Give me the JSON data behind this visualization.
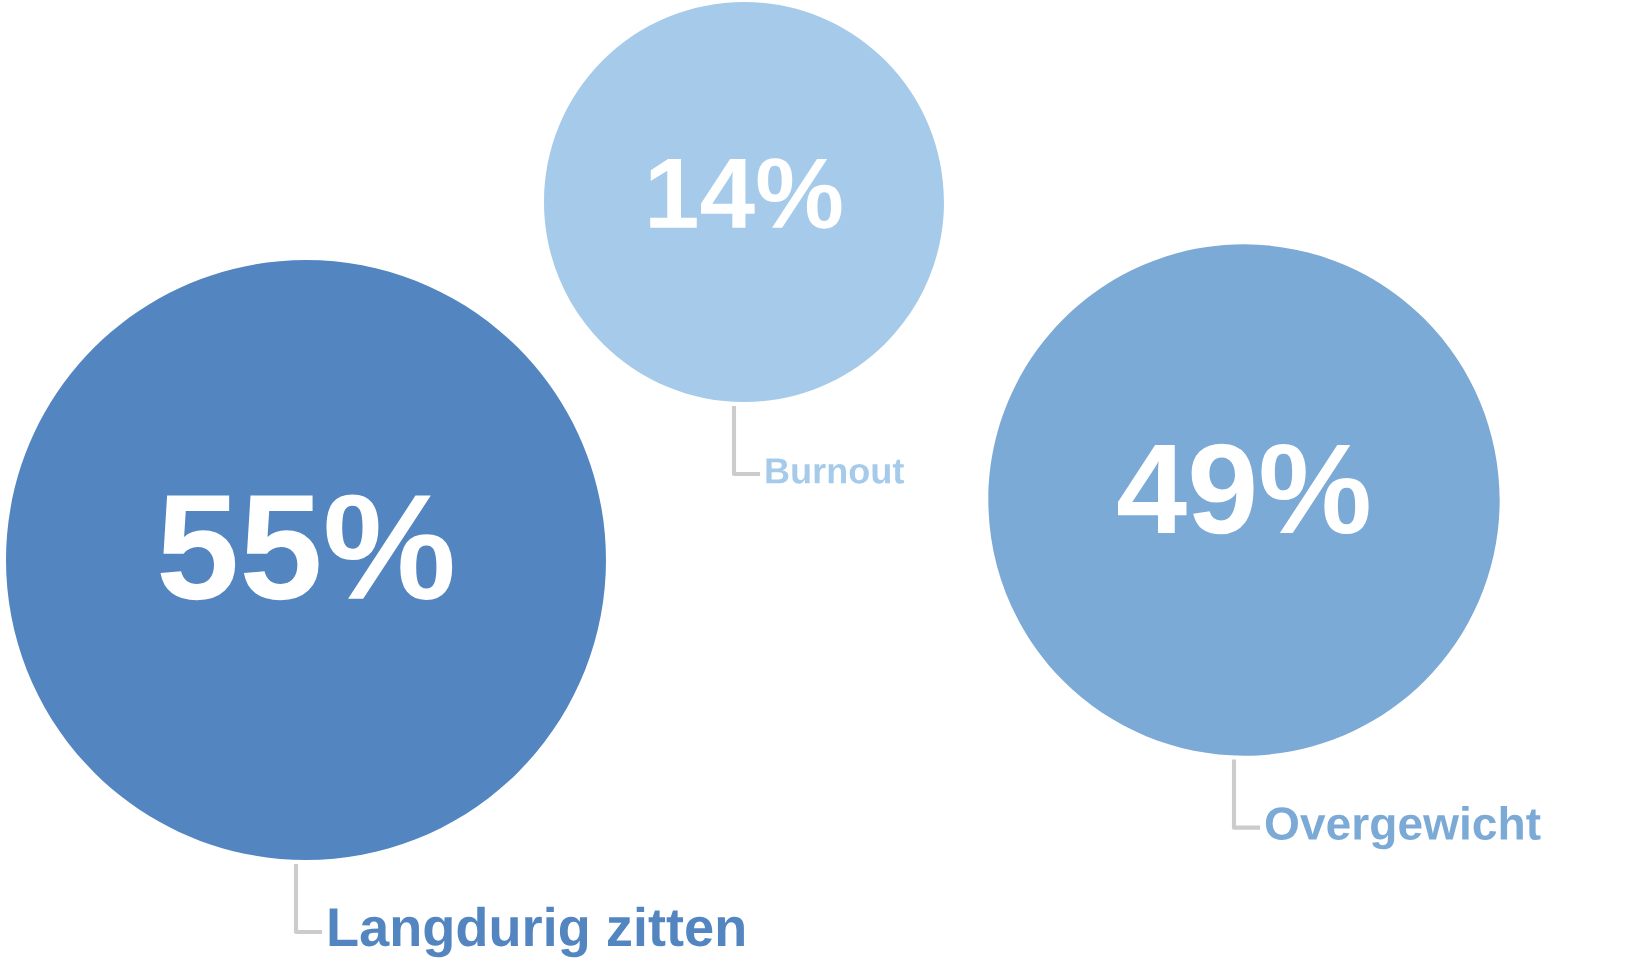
{
  "chart_data": {
    "type": "other",
    "categories": [
      "Langdurig zitten",
      "Burnout",
      "Overgewicht"
    ],
    "values": [
      55,
      14,
      49
    ],
    "value_labels": [
      "55%",
      "14%",
      "49%"
    ],
    "colors": [
      "#5386c0",
      "#a6cbea",
      "#7caad6"
    ]
  }
}
